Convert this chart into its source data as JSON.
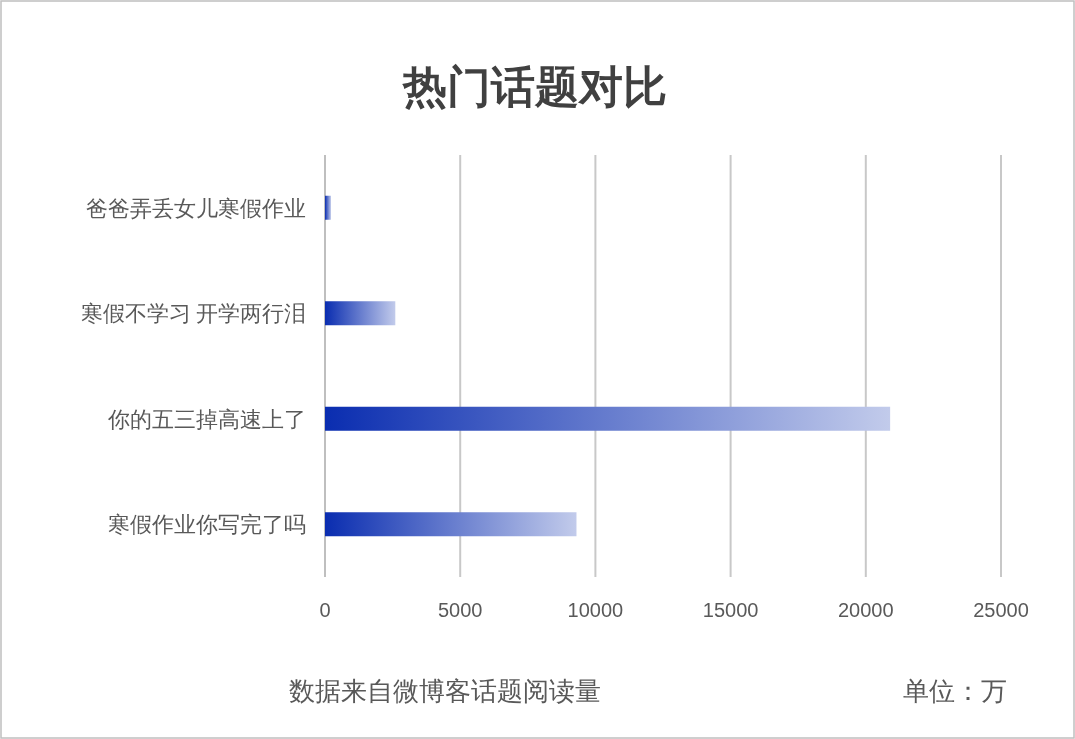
{
  "chart_data": {
    "type": "bar",
    "orientation": "horizontal",
    "title": "热门话题对比",
    "categories": [
      "爸爸弄丢女儿寒假作业",
      "寒假不学习 开学两行泪",
      "你的五三掉高速上了",
      "寒假作业你写完了吗"
    ],
    "values": [
      220,
      2600,
      20900,
      9300
    ],
    "color": "#0a2db0",
    "xlim": [
      0,
      25000
    ],
    "xticks": [
      0,
      5000,
      10000,
      15000,
      20000,
      25000
    ],
    "grid": "x",
    "annotations": [
      "数据来自微博客话题阅读量",
      "单位：万"
    ]
  }
}
